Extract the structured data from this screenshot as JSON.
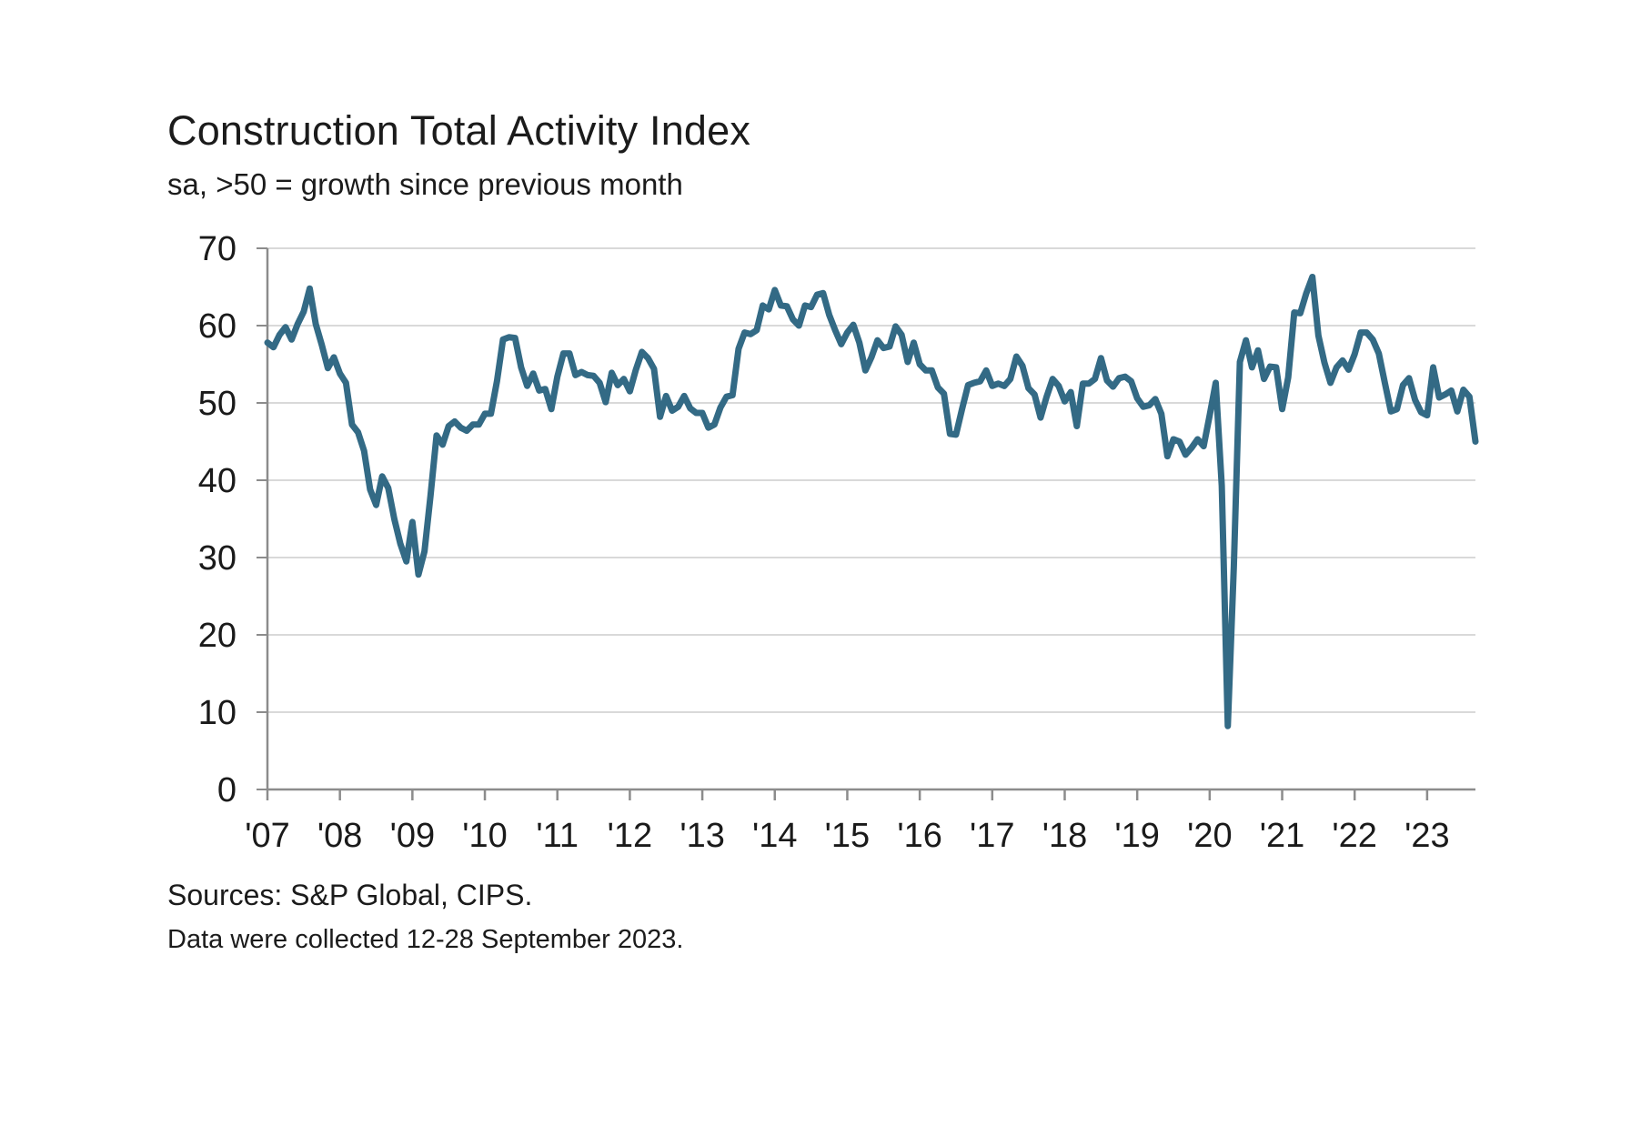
{
  "chart_data": {
    "type": "line",
    "title": "Construction Total Activity Index",
    "subtitle": "sa, >50 = growth since previous month",
    "xlabel": "",
    "ylabel": "",
    "ylim": [
      0,
      70
    ],
    "yticks": [
      0,
      10,
      20,
      30,
      40,
      50,
      60,
      70
    ],
    "xlim": [
      "2007-01",
      "2023-09"
    ],
    "xticks": [
      {
        "year": 2007,
        "label": "'07"
      },
      {
        "year": 2008,
        "label": "'08"
      },
      {
        "year": 2009,
        "label": "'09"
      },
      {
        "year": 2010,
        "label": "'10"
      },
      {
        "year": 2011,
        "label": "'11"
      },
      {
        "year": 2012,
        "label": "'12"
      },
      {
        "year": 2013,
        "label": "'13"
      },
      {
        "year": 2014,
        "label": "'14"
      },
      {
        "year": 2015,
        "label": "'15"
      },
      {
        "year": 2016,
        "label": "'16"
      },
      {
        "year": 2017,
        "label": "'17"
      },
      {
        "year": 2018,
        "label": "'18"
      },
      {
        "year": 2019,
        "label": "'19"
      },
      {
        "year": 2020,
        "label": "'20"
      },
      {
        "year": 2021,
        "label": "'21"
      },
      {
        "year": 2022,
        "label": "'22"
      },
      {
        "year": 2023,
        "label": "'23"
      }
    ],
    "grid": true,
    "series": [
      {
        "color": "#336a85",
        "points": [
          [
            "2007-01",
            57.8
          ],
          [
            "2007-02",
            57.2
          ],
          [
            "2007-03",
            58.8
          ],
          [
            "2007-04",
            59.8
          ],
          [
            "2007-05",
            58.2
          ],
          [
            "2007-06",
            60.2
          ],
          [
            "2007-07",
            61.8
          ],
          [
            "2007-08",
            64.8
          ],
          [
            "2007-09",
            60.2
          ],
          [
            "2007-10",
            57.5
          ],
          [
            "2007-11",
            54.5
          ],
          [
            "2007-12",
            55.9
          ],
          [
            "2008-01",
            53.8
          ],
          [
            "2008-02",
            52.6
          ],
          [
            "2008-03",
            47.2
          ],
          [
            "2008-04",
            46.2
          ],
          [
            "2008-05",
            43.8
          ],
          [
            "2008-06",
            38.8
          ],
          [
            "2008-07",
            36.8
          ],
          [
            "2008-08",
            40.5
          ],
          [
            "2008-09",
            39.0
          ],
          [
            "2008-10",
            35.0
          ],
          [
            "2008-11",
            31.8
          ],
          [
            "2008-12",
            29.5
          ],
          [
            "2009-01",
            34.6
          ],
          [
            "2009-02",
            27.8
          ],
          [
            "2009-03",
            30.8
          ],
          [
            "2009-04",
            38.0
          ],
          [
            "2009-05",
            45.8
          ],
          [
            "2009-06",
            44.6
          ],
          [
            "2009-07",
            47.0
          ],
          [
            "2009-08",
            47.6
          ],
          [
            "2009-09",
            46.8
          ],
          [
            "2009-10",
            46.4
          ],
          [
            "2009-11",
            47.2
          ],
          [
            "2009-12",
            47.2
          ],
          [
            "2010-01",
            48.6
          ],
          [
            "2010-02",
            48.6
          ],
          [
            "2010-03",
            52.8
          ],
          [
            "2010-04",
            58.2
          ],
          [
            "2010-05",
            58.5
          ],
          [
            "2010-06",
            58.4
          ],
          [
            "2010-07",
            54.6
          ],
          [
            "2010-08",
            52.2
          ],
          [
            "2010-09",
            53.8
          ],
          [
            "2010-10",
            51.6
          ],
          [
            "2010-11",
            51.8
          ],
          [
            "2010-12",
            49.2
          ],
          [
            "2011-01",
            53.4
          ],
          [
            "2011-02",
            56.4
          ],
          [
            "2011-03",
            56.4
          ],
          [
            "2011-04",
            53.6
          ],
          [
            "2011-05",
            54.0
          ],
          [
            "2011-06",
            53.6
          ],
          [
            "2011-07",
            53.5
          ],
          [
            "2011-08",
            52.6
          ],
          [
            "2011-09",
            50.1
          ],
          [
            "2011-10",
            53.9
          ],
          [
            "2011-11",
            52.3
          ],
          [
            "2011-12",
            53.1
          ],
          [
            "2012-01",
            51.5
          ],
          [
            "2012-02",
            54.3
          ],
          [
            "2012-03",
            56.6
          ],
          [
            "2012-04",
            55.8
          ],
          [
            "2012-05",
            54.4
          ],
          [
            "2012-06",
            48.2
          ],
          [
            "2012-07",
            50.9
          ],
          [
            "2012-08",
            49.0
          ],
          [
            "2012-09",
            49.5
          ],
          [
            "2012-10",
            50.9
          ],
          [
            "2012-11",
            49.3
          ],
          [
            "2012-12",
            48.7
          ],
          [
            "2013-01",
            48.7
          ],
          [
            "2013-02",
            46.8
          ],
          [
            "2013-03",
            47.2
          ],
          [
            "2013-04",
            49.4
          ],
          [
            "2013-05",
            50.8
          ],
          [
            "2013-06",
            51.0
          ],
          [
            "2013-07",
            57.0
          ],
          [
            "2013-08",
            59.1
          ],
          [
            "2013-09",
            58.9
          ],
          [
            "2013-10",
            59.4
          ],
          [
            "2013-11",
            62.6
          ],
          [
            "2013-12",
            62.1
          ],
          [
            "2014-01",
            64.6
          ],
          [
            "2014-02",
            62.6
          ],
          [
            "2014-03",
            62.5
          ],
          [
            "2014-04",
            60.8
          ],
          [
            "2014-05",
            60.0
          ],
          [
            "2014-06",
            62.6
          ],
          [
            "2014-07",
            62.4
          ],
          [
            "2014-08",
            64.0
          ],
          [
            "2014-09",
            64.2
          ],
          [
            "2014-10",
            61.4
          ],
          [
            "2014-11",
            59.4
          ],
          [
            "2014-12",
            57.6
          ],
          [
            "2015-01",
            59.1
          ],
          [
            "2015-02",
            60.1
          ],
          [
            "2015-03",
            57.8
          ],
          [
            "2015-04",
            54.2
          ],
          [
            "2015-05",
            55.9
          ],
          [
            "2015-06",
            58.1
          ],
          [
            "2015-07",
            57.1
          ],
          [
            "2015-08",
            57.3
          ],
          [
            "2015-09",
            59.9
          ],
          [
            "2015-10",
            58.8
          ],
          [
            "2015-11",
            55.3
          ],
          [
            "2015-12",
            57.8
          ],
          [
            "2016-01",
            55.0
          ],
          [
            "2016-02",
            54.2
          ],
          [
            "2016-03",
            54.2
          ],
          [
            "2016-04",
            52.0
          ],
          [
            "2016-05",
            51.2
          ],
          [
            "2016-06",
            46.0
          ],
          [
            "2016-07",
            45.9
          ],
          [
            "2016-08",
            49.2
          ],
          [
            "2016-09",
            52.3
          ],
          [
            "2016-10",
            52.6
          ],
          [
            "2016-11",
            52.8
          ],
          [
            "2016-12",
            54.2
          ],
          [
            "2017-01",
            52.2
          ],
          [
            "2017-02",
            52.5
          ],
          [
            "2017-03",
            52.2
          ],
          [
            "2017-04",
            53.1
          ],
          [
            "2017-05",
            56.0
          ],
          [
            "2017-06",
            54.8
          ],
          [
            "2017-07",
            51.9
          ],
          [
            "2017-08",
            51.1
          ],
          [
            "2017-09",
            48.1
          ],
          [
            "2017-10",
            50.8
          ],
          [
            "2017-11",
            53.1
          ],
          [
            "2017-12",
            52.2
          ],
          [
            "2018-01",
            50.2
          ],
          [
            "2018-02",
            51.4
          ],
          [
            "2018-03",
            47.0
          ],
          [
            "2018-04",
            52.5
          ],
          [
            "2018-05",
            52.5
          ],
          [
            "2018-06",
            53.1
          ],
          [
            "2018-07",
            55.8
          ],
          [
            "2018-08",
            52.9
          ],
          [
            "2018-09",
            52.1
          ],
          [
            "2018-10",
            53.2
          ],
          [
            "2018-11",
            53.4
          ],
          [
            "2018-12",
            52.8
          ],
          [
            "2019-01",
            50.6
          ],
          [
            "2019-02",
            49.5
          ],
          [
            "2019-03",
            49.7
          ],
          [
            "2019-04",
            50.5
          ],
          [
            "2019-05",
            48.6
          ],
          [
            "2019-06",
            43.1
          ],
          [
            "2019-07",
            45.3
          ],
          [
            "2019-08",
            45.0
          ],
          [
            "2019-09",
            43.3
          ],
          [
            "2019-10",
            44.2
          ],
          [
            "2019-11",
            45.3
          ],
          [
            "2019-12",
            44.4
          ],
          [
            "2020-01",
            48.4
          ],
          [
            "2020-02",
            52.6
          ],
          [
            "2020-03",
            39.3
          ],
          [
            "2020-04",
            8.2
          ],
          [
            "2020-05",
            28.9
          ],
          [
            "2020-06",
            55.3
          ],
          [
            "2020-07",
            58.1
          ],
          [
            "2020-08",
            54.6
          ],
          [
            "2020-09",
            56.8
          ],
          [
            "2020-10",
            53.1
          ],
          [
            "2020-11",
            54.7
          ],
          [
            "2020-12",
            54.6
          ],
          [
            "2021-01",
            49.2
          ],
          [
            "2021-02",
            53.3
          ],
          [
            "2021-03",
            61.7
          ],
          [
            "2021-04",
            61.6
          ],
          [
            "2021-05",
            64.2
          ],
          [
            "2021-06",
            66.3
          ],
          [
            "2021-07",
            58.7
          ],
          [
            "2021-08",
            55.2
          ],
          [
            "2021-09",
            52.6
          ],
          [
            "2021-10",
            54.6
          ],
          [
            "2021-11",
            55.5
          ],
          [
            "2021-12",
            54.3
          ],
          [
            "2022-01",
            56.3
          ],
          [
            "2022-02",
            59.1
          ],
          [
            "2022-03",
            59.1
          ],
          [
            "2022-04",
            58.2
          ],
          [
            "2022-05",
            56.4
          ],
          [
            "2022-06",
            52.6
          ],
          [
            "2022-07",
            48.9
          ],
          [
            "2022-08",
            49.2
          ],
          [
            "2022-09",
            52.3
          ],
          [
            "2022-10",
            53.2
          ],
          [
            "2022-11",
            50.4
          ],
          [
            "2022-12",
            48.8
          ],
          [
            "2023-01",
            48.4
          ],
          [
            "2023-02",
            54.6
          ],
          [
            "2023-03",
            50.7
          ],
          [
            "2023-04",
            51.1
          ],
          [
            "2023-05",
            51.6
          ],
          [
            "2023-06",
            48.9
          ],
          [
            "2023-07",
            51.7
          ],
          [
            "2023-08",
            50.8
          ],
          [
            "2023-09",
            45.0
          ]
        ]
      }
    ]
  },
  "footer": {
    "source": "Sources: S&P Global, CIPS.",
    "note": "Data were collected 12-28 September 2023."
  },
  "colors": {
    "line": "#336a85",
    "grid": "#d9d9d9",
    "axis": "#8c8c8c"
  }
}
